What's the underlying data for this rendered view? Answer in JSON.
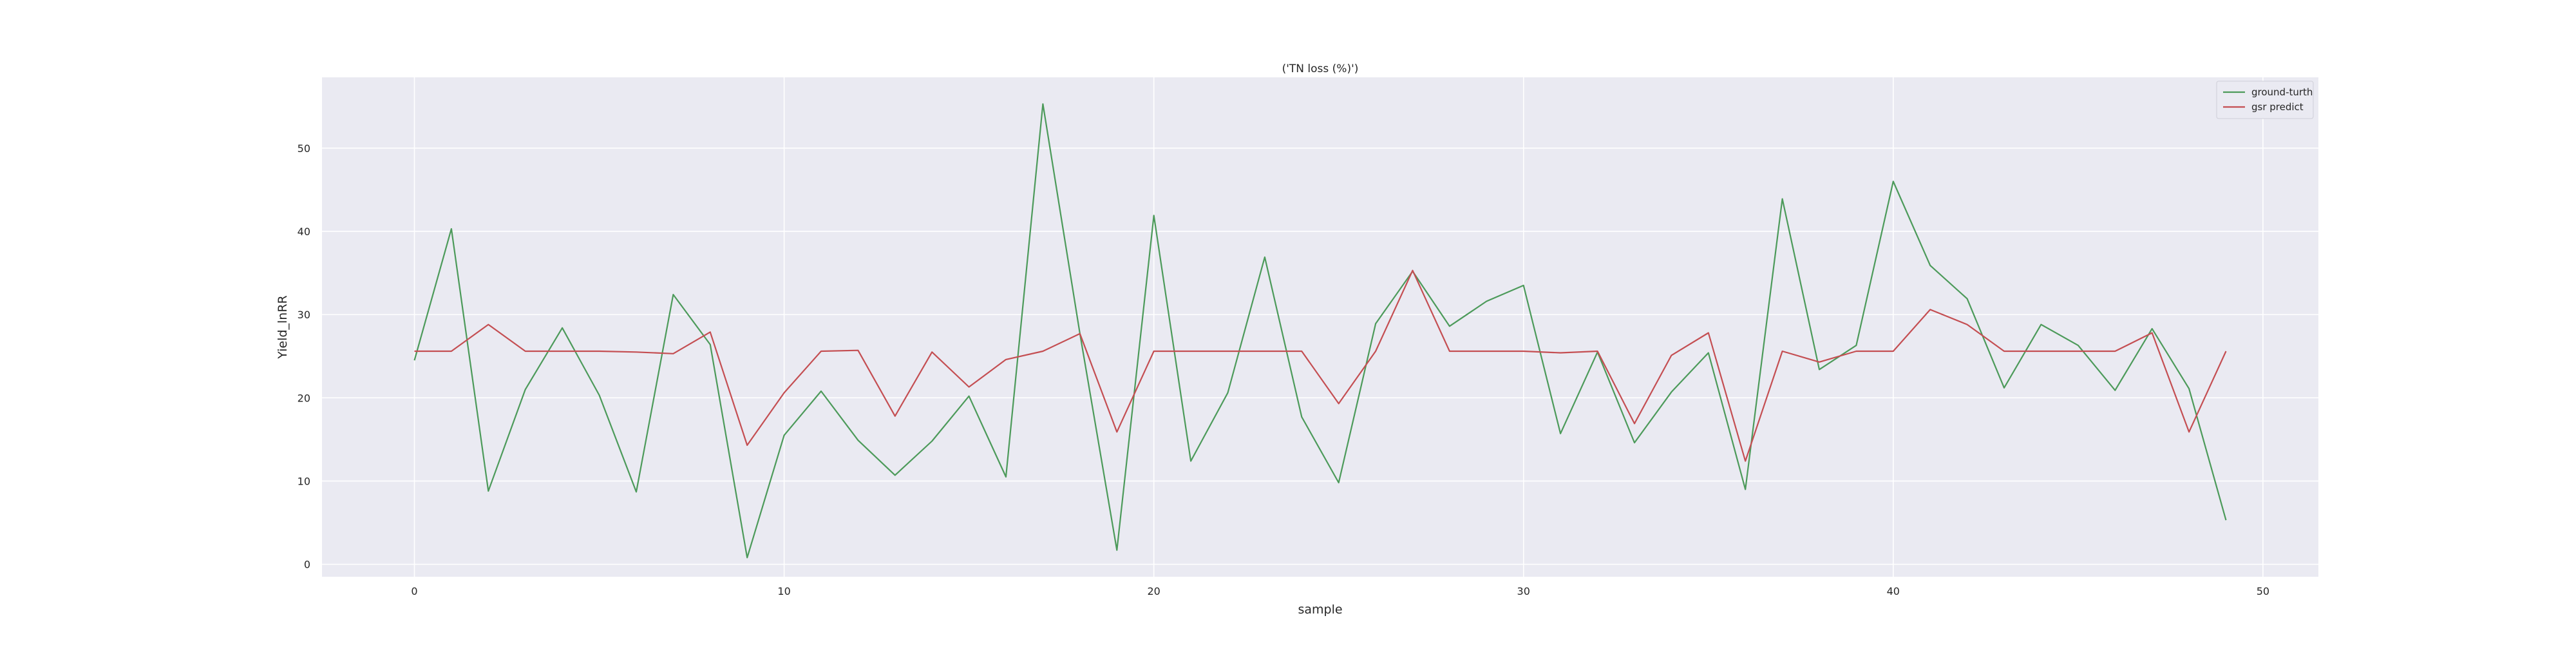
{
  "chart_data": {
    "type": "line",
    "title": "('TN loss (%)')",
    "xlabel": "sample",
    "ylabel": "Yield_lnRR",
    "xlim": [
      -2.5,
      51.5
    ],
    "ylim": [
      -1.5,
      58.5
    ],
    "xticks": [
      0,
      10,
      20,
      30,
      40,
      50
    ],
    "yticks": [
      0,
      10,
      20,
      30,
      40,
      50
    ],
    "grid": true,
    "legend_position": "top-right",
    "x": [
      0,
      1,
      2,
      3,
      4,
      5,
      6,
      7,
      8,
      9,
      10,
      11,
      12,
      13,
      14,
      15,
      16,
      17,
      18,
      19,
      20,
      21,
      22,
      23,
      24,
      25,
      26,
      27,
      28,
      29,
      30,
      31,
      32,
      33,
      34,
      35,
      36,
      37,
      38,
      39,
      40,
      41,
      42,
      43,
      44,
      45,
      46,
      47,
      48,
      49
    ],
    "series": [
      {
        "name": "ground-turth",
        "color": "#4c9a5a",
        "values": [
          24.5,
          40.3,
          8.8,
          21.0,
          28.4,
          20.3,
          8.7,
          32.4,
          26.4,
          0.8,
          15.5,
          20.8,
          14.9,
          10.7,
          14.8,
          20.2,
          10.5,
          55.3,
          27.7,
          1.7,
          41.9,
          12.4,
          20.6,
          36.9,
          17.7,
          9.8,
          28.9,
          35.2,
          28.6,
          31.6,
          33.5,
          15.7,
          25.5,
          14.6,
          20.7,
          25.4,
          9.0,
          43.9,
          23.4,
          26.3,
          46.0,
          35.9,
          31.9,
          21.2,
          28.8,
          26.3,
          20.9,
          28.3,
          21.1,
          5.3
        ]
      },
      {
        "name": "gsr predict",
        "color": "#c44e52",
        "values": [
          25.6,
          25.6,
          28.8,
          25.6,
          25.6,
          25.6,
          25.5,
          25.3,
          27.9,
          14.3,
          20.6,
          25.6,
          25.7,
          17.8,
          25.5,
          21.3,
          24.6,
          25.6,
          27.7,
          15.9,
          25.6,
          25.6,
          25.6,
          25.6,
          25.6,
          19.3,
          25.6,
          35.3,
          25.6,
          25.6,
          25.6,
          25.4,
          25.6,
          16.9,
          25.1,
          27.8,
          12.4,
          25.6,
          24.3,
          25.6,
          25.6,
          30.6,
          28.8,
          25.6,
          25.6,
          25.6,
          25.6,
          27.8,
          15.9,
          25.6
        ]
      }
    ]
  }
}
